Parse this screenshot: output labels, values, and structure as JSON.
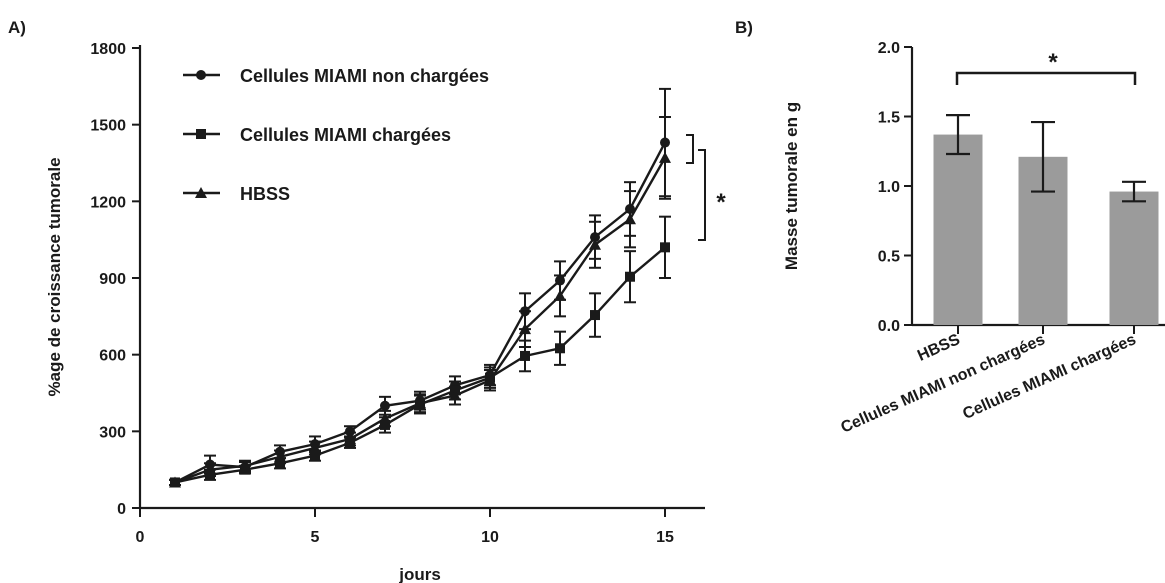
{
  "chart_data": [
    {
      "panel_label": "A)",
      "type": "line",
      "xlabel": "jours",
      "ylabel": "%age de croissance tumorale",
      "xlim": [
        0,
        16
      ],
      "ylim": [
        0,
        1800
      ],
      "xticks": [
        0,
        5,
        10,
        15
      ],
      "yticks": [
        0,
        300,
        600,
        900,
        1200,
        1500,
        1800
      ],
      "legend_position": "top-left",
      "x": [
        1,
        2,
        3,
        4,
        5,
        6,
        7,
        8,
        9,
        10,
        11,
        12,
        13,
        14,
        15
      ],
      "series": [
        {
          "name": "Cellules MIAMI non chargées",
          "marker": "circle",
          "values": [
            100,
            170,
            160,
            220,
            250,
            300,
            400,
            420,
            480,
            520,
            770,
            890,
            1060,
            1170,
            1430
          ],
          "error": [
            10,
            35,
            20,
            25,
            30,
            20,
            35,
            35,
            35,
            40,
            70,
            75,
            85,
            105,
            210
          ]
        },
        {
          "name": "Cellules MIAMI chargées",
          "marker": "square",
          "values": [
            100,
            130,
            150,
            175,
            205,
            255,
            325,
            405,
            460,
            510,
            595,
            625,
            755,
            905,
            1020
          ],
          "error": [
            10,
            20,
            15,
            20,
            20,
            20,
            30,
            35,
            35,
            40,
            60,
            65,
            85,
            100,
            120
          ]
        },
        {
          "name": "HBSS",
          "marker": "triangle",
          "values": [
            100,
            150,
            165,
            200,
            235,
            270,
            350,
            410,
            440,
            500,
            700,
            830,
            1030,
            1130,
            1370
          ],
          "error": [
            10,
            25,
            20,
            25,
            25,
            25,
            30,
            35,
            35,
            40,
            70,
            80,
            90,
            110,
            160
          ]
        }
      ],
      "annotation": "*"
    },
    {
      "panel_label": "B)",
      "type": "bar",
      "ylabel": "Masse tumorale en g",
      "ylim": [
        0,
        2.0
      ],
      "yticks": [
        "0.0",
        "0.5",
        "1.0",
        "1.5",
        "2.0"
      ],
      "categories": [
        "HBSS",
        "Cellules MIAMI non chargées",
        "Cellules MIAMI chargées"
      ],
      "values": [
        1.37,
        1.21,
        0.96
      ],
      "error": [
        0.14,
        0.25,
        0.07
      ],
      "bar_color": "#9b9b9b",
      "annotation": "*"
    }
  ]
}
